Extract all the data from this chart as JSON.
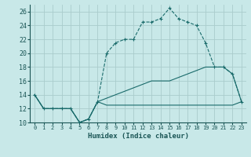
{
  "xlabel": "Humidex (Indice chaleur)",
  "background_color": "#c8e8e8",
  "grid_color": "#aacccc",
  "line_color": "#1a6b6b",
  "xlim": [
    -0.5,
    23.5
  ],
  "ylim": [
    10,
    27
  ],
  "xticks": [
    0,
    1,
    2,
    3,
    4,
    5,
    6,
    7,
    8,
    9,
    10,
    11,
    12,
    13,
    14,
    15,
    16,
    17,
    18,
    19,
    20,
    21,
    22,
    23
  ],
  "yticks": [
    10,
    12,
    14,
    16,
    18,
    20,
    22,
    24,
    26
  ],
  "line1_x": [
    0,
    1,
    2,
    3,
    4,
    5,
    6,
    7,
    8,
    9,
    10,
    11,
    12,
    13,
    14,
    15,
    16,
    17,
    18,
    19,
    20,
    21,
    22,
    23
  ],
  "line1_y": [
    14,
    12,
    12,
    12,
    12,
    10,
    10.5,
    13,
    20,
    21.5,
    22,
    22,
    24.5,
    24.5,
    25,
    26.5,
    25,
    24.5,
    24,
    21.5,
    18,
    18,
    17,
    13
  ],
  "line2_x": [
    0,
    1,
    2,
    3,
    4,
    5,
    6,
    7,
    8,
    9,
    10,
    11,
    12,
    13,
    14,
    15,
    16,
    17,
    18,
    19,
    20,
    21,
    22,
    23
  ],
  "line2_y": [
    14,
    12,
    12,
    12,
    12,
    10,
    10.5,
    13,
    13.5,
    14,
    14.5,
    15,
    15.5,
    16,
    16,
    16,
    16.5,
    17,
    17.5,
    18,
    18,
    18,
    17,
    13
  ],
  "line3_x": [
    0,
    1,
    2,
    3,
    4,
    5,
    6,
    7,
    8,
    9,
    10,
    11,
    12,
    13,
    14,
    15,
    16,
    17,
    18,
    19,
    20,
    21,
    22,
    23
  ],
  "line3_y": [
    14,
    12,
    12,
    12,
    12,
    10,
    10.5,
    13,
    12.5,
    12.5,
    12.5,
    12.5,
    12.5,
    12.5,
    12.5,
    12.5,
    12.5,
    12.5,
    12.5,
    12.5,
    12.5,
    12.5,
    12.5,
    13
  ]
}
